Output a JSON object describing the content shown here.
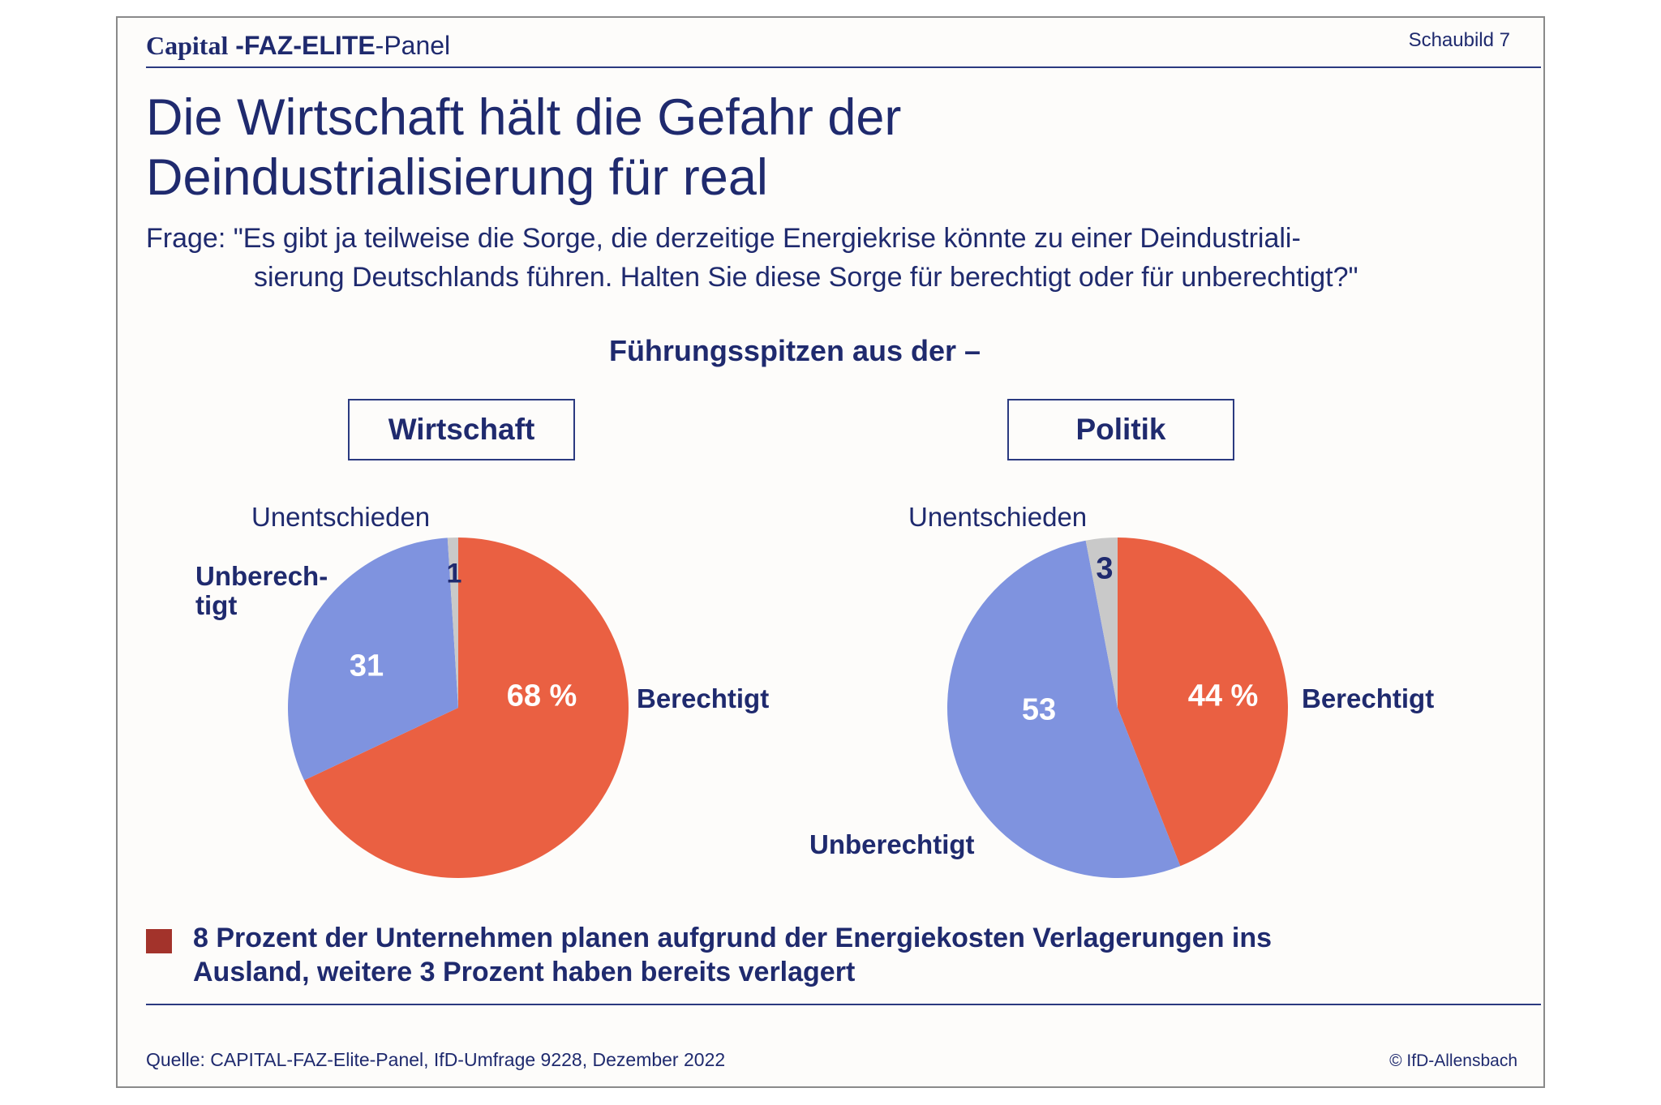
{
  "header": {
    "logo_capital": "Capital",
    "logo_faz": "-FAZ-ELITE",
    "logo_panel": "-Panel",
    "chart_number": "Schaubild 7"
  },
  "title_line1": "Die Wirtschaft hält die Gefahr der",
  "title_line2": "Deindustrialisierung für real",
  "question": {
    "label": "Frage: ",
    "line1": "\"Es gibt ja teilweise die Sorge, die derzeitige Energiekrise könnte zu einer Deindustriali-",
    "line2": "sierung Deutschlands führen. Halten Sie diese Sorge für berechtigt oder für unberechtigt?\""
  },
  "subheading": "Führungsspitzen aus der –",
  "colors": {
    "berechtigt": "#ea6042",
    "unberechtigt": "#7f93df",
    "unentschieden": "#c9c9c9",
    "text": "#1f2a6e",
    "note_square": "#a3332b"
  },
  "chart_data": [
    {
      "type": "pie",
      "title": "Wirtschaft",
      "categories": [
        "Berechtigt",
        "Unberechtigt",
        "Unentschieden"
      ],
      "values": [
        68,
        31,
        1
      ],
      "value_labels": [
        "68 %",
        "31",
        "1"
      ],
      "category_labels": [
        "Berechtigt",
        "Unberech-\ntigt",
        "Unentschieden"
      ]
    },
    {
      "type": "pie",
      "title": "Politik",
      "categories": [
        "Berechtigt",
        "Unberechtigt",
        "Unentschieden"
      ],
      "values": [
        44,
        53,
        3
      ],
      "value_labels": [
        "44 %",
        "53",
        "3"
      ],
      "category_labels": [
        "Berechtigt",
        "Unberechtigt",
        "Unentschieden"
      ]
    }
  ],
  "note": {
    "line1": "8 Prozent der Unternehmen planen aufgrund der Energiekosten Verlagerungen ins",
    "line2": "Ausland, weitere 3 Prozent haben bereits verlagert"
  },
  "footer": {
    "source": "Quelle: CAPITAL-FAZ-Elite-Panel, IfD-Umfrage 9228, Dezember 2022",
    "copyright": "© IfD-Allensbach"
  }
}
